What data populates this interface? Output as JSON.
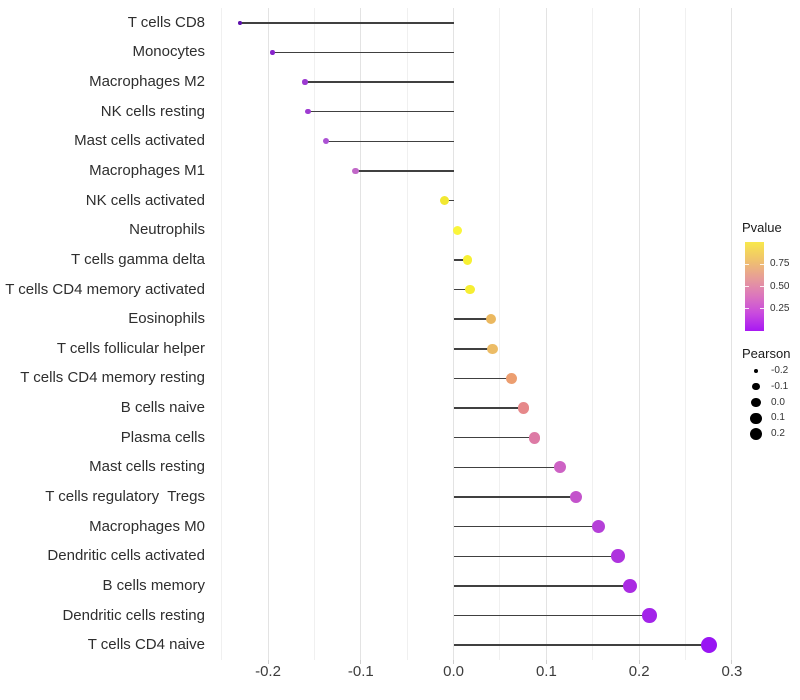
{
  "chart_data": {
    "type": "lollipop",
    "title": "",
    "xlabel": "",
    "ylabel": "",
    "xlim": [
      -0.255,
      0.327
    ],
    "x_ticks": [
      -0.2,
      -0.1,
      0.0,
      0.1,
      0.2,
      0.3
    ],
    "x_tick_labels": [
      "-0.2",
      "-0.1",
      "0.0",
      "0.1",
      "0.2",
      "0.3"
    ],
    "grid_minor_ticks": [
      -0.25,
      -0.15,
      -0.05,
      0.05,
      0.15,
      0.25
    ],
    "grid": true,
    "legend_position": "right",
    "categories": [
      "T cells CD8",
      "Monocytes",
      "Macrophages M2",
      "NK cells resting",
      "Mast cells activated",
      "Macrophages M1",
      "NK cells activated",
      "Neutrophils",
      "T cells gamma delta",
      "T cells CD4 memory activated",
      "Eosinophils",
      "T cells follicular helper",
      "T cells CD4 memory resting",
      "B cells naive",
      "Plasma cells",
      "Mast cells resting",
      "T cells regulatory  Tregs",
      "Macrophages M0",
      "Dendritic cells activated",
      "B cells memory",
      "Dendritic cells resting",
      "T cells CD4 naive"
    ],
    "points": [
      {
        "label": "T cells CD8",
        "pearson": -0.23,
        "dot_color": "#5E11AC"
      },
      {
        "label": "Monocytes",
        "pearson": -0.195,
        "dot_color": "#8824CB"
      },
      {
        "label": "Macrophages M2",
        "pearson": -0.16,
        "dot_color": "#9C3AD1"
      },
      {
        "label": "NK cells resting",
        "pearson": -0.157,
        "dot_color": "#9E3CD1"
      },
      {
        "label": "Mast cells activated",
        "pearson": -0.137,
        "dot_color": "#AC52D4"
      },
      {
        "label": "Macrophages M1",
        "pearson": -0.106,
        "dot_color": "#C168C8"
      },
      {
        "label": "NK cells activated",
        "pearson": -0.01,
        "dot_color": "#F2E832"
      },
      {
        "label": "Neutrophils",
        "pearson": 0.004,
        "dot_color": "#FAF53B"
      },
      {
        "label": "T cells gamma delta",
        "pearson": 0.015,
        "dot_color": "#F7F033"
      },
      {
        "label": "T cells CD4 memory activated",
        "pearson": 0.018,
        "dot_color": "#F6EE33"
      },
      {
        "label": "Eosinophils",
        "pearson": 0.04,
        "dot_color": "#EBB85F"
      },
      {
        "label": "T cells follicular helper",
        "pearson": 0.042,
        "dot_color": "#ECBC66"
      },
      {
        "label": "T cells CD4 memory resting",
        "pearson": 0.062,
        "dot_color": "#EC9E70"
      },
      {
        "label": "B cells naive",
        "pearson": 0.075,
        "dot_color": "#E6888A"
      },
      {
        "label": "Plasma cells",
        "pearson": 0.087,
        "dot_color": "#DD7AA5"
      },
      {
        "label": "Mast cells resting",
        "pearson": 0.115,
        "dot_color": "#CD62C4"
      },
      {
        "label": "T cells regulatory  Tregs",
        "pearson": 0.132,
        "dot_color": "#C353CB"
      },
      {
        "label": "Macrophages M0",
        "pearson": 0.156,
        "dot_color": "#B540D8"
      },
      {
        "label": "Dendritic cells activated",
        "pearson": 0.177,
        "dot_color": "#AE33DE"
      },
      {
        "label": "B cells memory",
        "pearson": 0.19,
        "dot_color": "#AA2CE2"
      },
      {
        "label": "Dendritic cells resting",
        "pearson": 0.211,
        "dot_color": "#A324E9"
      },
      {
        "label": "T cells CD4 naive",
        "pearson": 0.275,
        "dot_color": "#9915F3"
      }
    ],
    "legends": {
      "pvalue": {
        "title": "Pvalue",
        "tick_labels": [
          "0.75",
          "0.50",
          "0.25"
        ],
        "tick_values": [
          0.75,
          0.5,
          0.25
        ],
        "gradient_top_to_bottom": [
          "#F8E84C",
          "#F0C36C",
          "#E79E97",
          "#DC77BC",
          "#C94BDE",
          "#A818F3"
        ]
      },
      "pearson": {
        "title": "Pearson",
        "dot_color": "#000000",
        "sizes": [
          {
            "label": "-0.2",
            "r": 2.2
          },
          {
            "label": "-0.1",
            "r": 3.6
          },
          {
            "label": "0.0",
            "r": 4.7
          },
          {
            "label": "0.1",
            "r": 5.6
          },
          {
            "label": "0.2",
            "r": 6.4
          }
        ]
      }
    },
    "colors": {
      "line": "#404040",
      "grid_major": "#e3e3e3",
      "grid_minor": "#f0f0f0",
      "axis_text": "#3c3c3c",
      "background": "#ffffff"
    }
  }
}
